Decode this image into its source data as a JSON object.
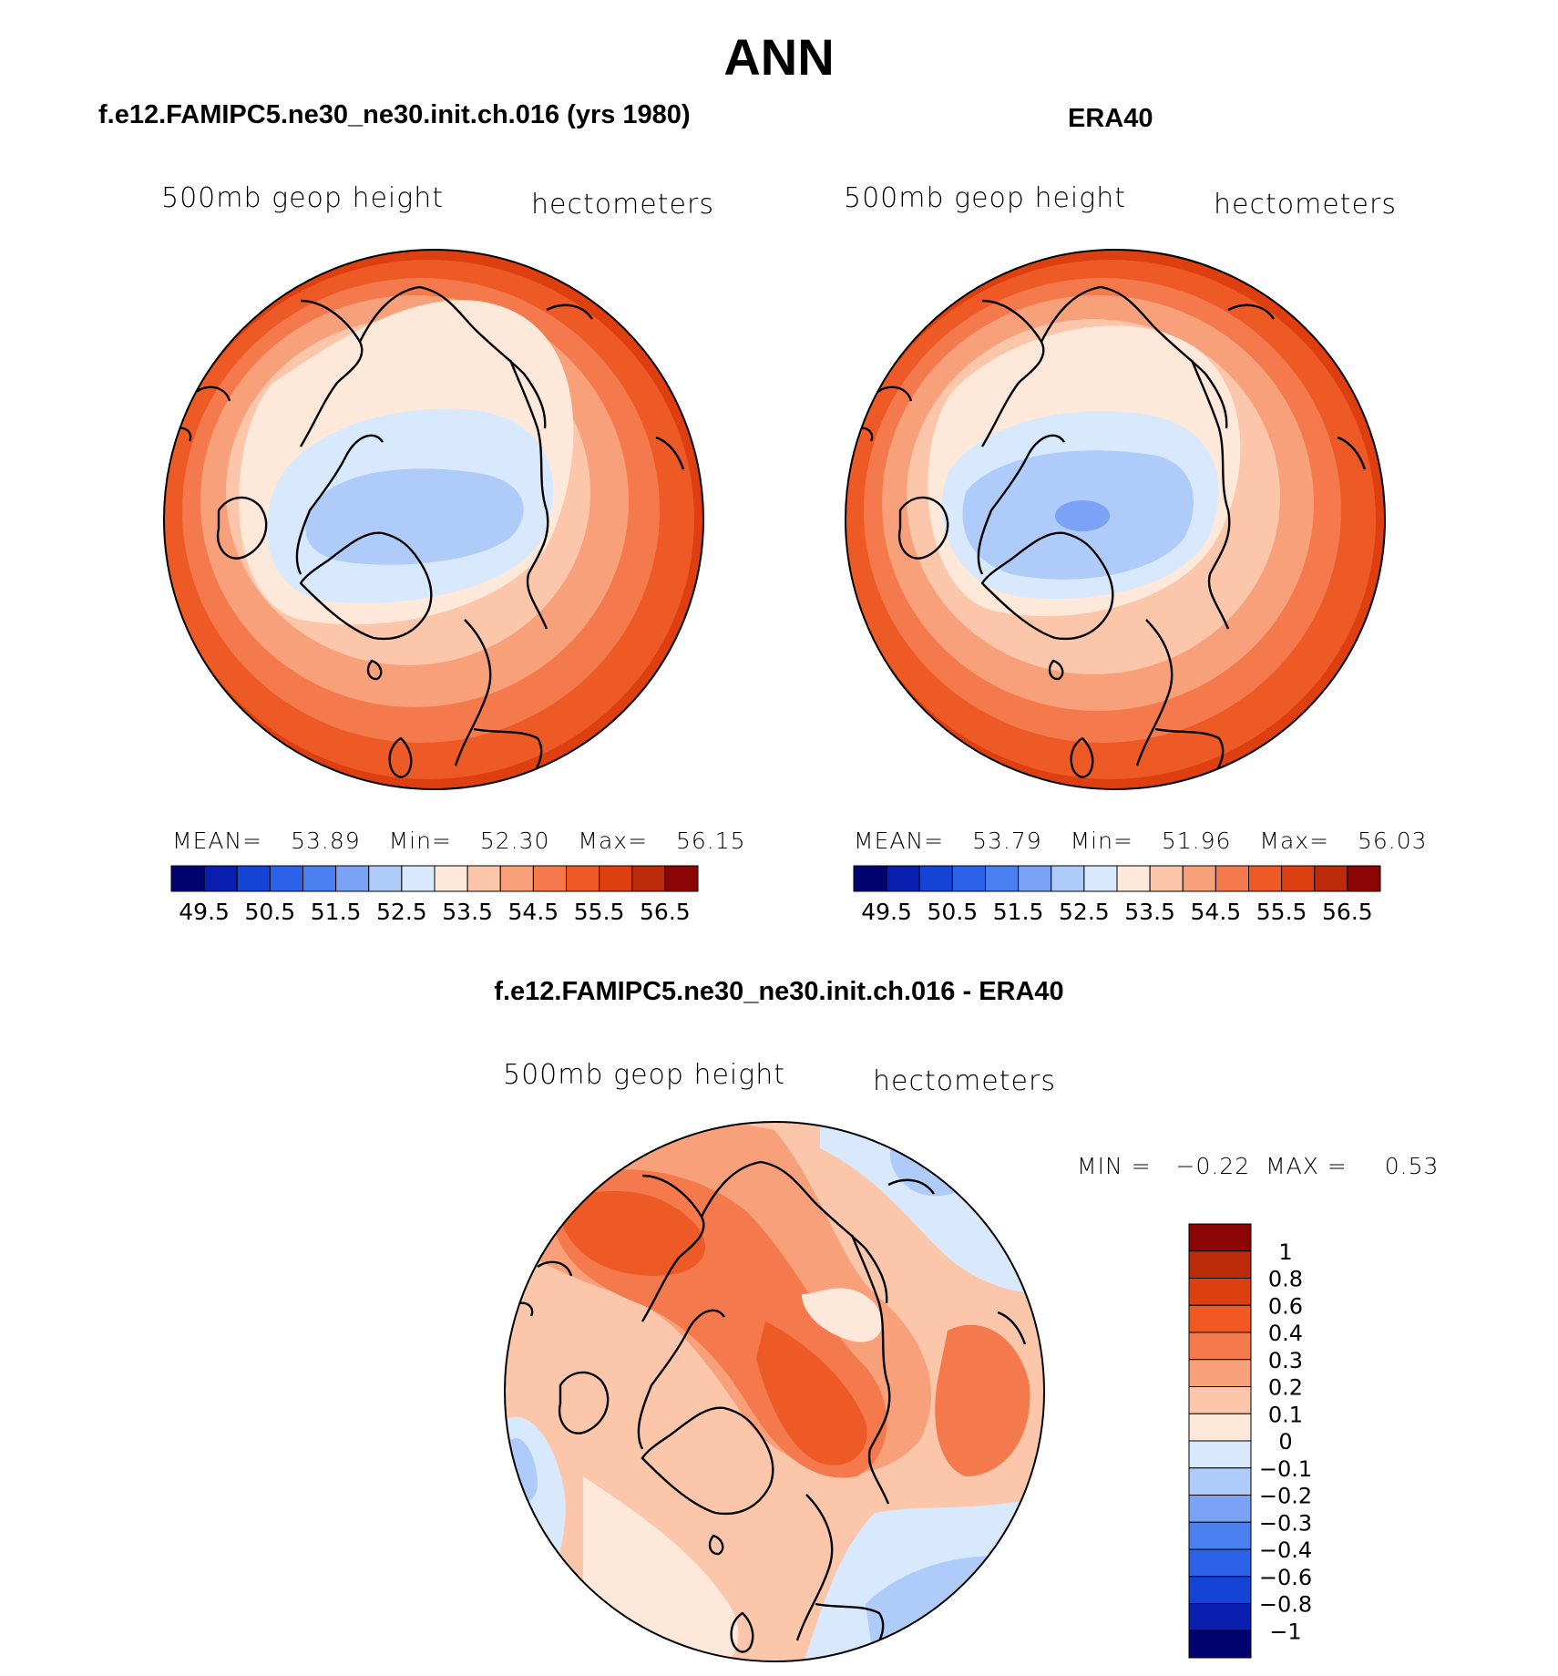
{
  "main_title": "ANN",
  "panels": [
    {
      "title": "f.e12.FAMIPC5.ne30_ne30.init.ch.016 (yrs 1980)",
      "field_label": "500mb  geop  height",
      "units": "hectometers",
      "stats": {
        "mean_label": "MEAN=",
        "mean": "53.89",
        "min_label": "Min=",
        "min": "52.30",
        "max_label": "Max=",
        "max": "56.15"
      }
    },
    {
      "title": "ERA40",
      "field_label": "500mb  geop  height",
      "units": "hectometers",
      "stats": {
        "mean_label": "MEAN=",
        "mean": "53.79",
        "min_label": "Min=",
        "min": "51.96",
        "max_label": "Max=",
        "max": "56.03"
      }
    }
  ],
  "abs_colorbar": {
    "tick_labels": [
      "49.5",
      "50.5",
      "51.5",
      "52.5",
      "53.5",
      "54.5",
      "55.5",
      "56.5"
    ],
    "colors": [
      "#02036e",
      "#0a1fb0",
      "#1543d6",
      "#2b62e8",
      "#4a7ff0",
      "#7aa3f6",
      "#aecbfa",
      "#d8e9fd",
      "#fde8da",
      "#fbc6aa",
      "#f7a079",
      "#f47a4d",
      "#ee5a26",
      "#de3f10",
      "#bb2a09",
      "#8c0505"
    ]
  },
  "diff": {
    "title": "f.e12.FAMIPC5.ne30_ne30.init.ch.016 - ERA40",
    "field_label": "500mb  geop  height",
    "units": "hectometers",
    "minmax": {
      "min_label": "MIN =",
      "min": "−0.22",
      "max_label": "MAX =",
      "max": "0.53"
    },
    "colorbar": {
      "tick_labels": [
        "1",
        "0.8",
        "0.6",
        "0.4",
        "0.3",
        "0.2",
        "0.1",
        "0",
        "−0.1",
        "−0.2",
        "−0.3",
        "−0.4",
        "−0.6",
        "−0.8",
        "−1"
      ],
      "colors": [
        "#8c0505",
        "#bb2a09",
        "#de3f10",
        "#f05a22",
        "#f47a4d",
        "#f7a079",
        "#fbc6aa",
        "#fde8da",
        "#d8e9fd",
        "#aecbfa",
        "#7aa3f6",
        "#4a7ff0",
        "#2b62e8",
        "#1543d6",
        "#0a1fb0",
        "#02036e"
      ]
    }
  }
}
